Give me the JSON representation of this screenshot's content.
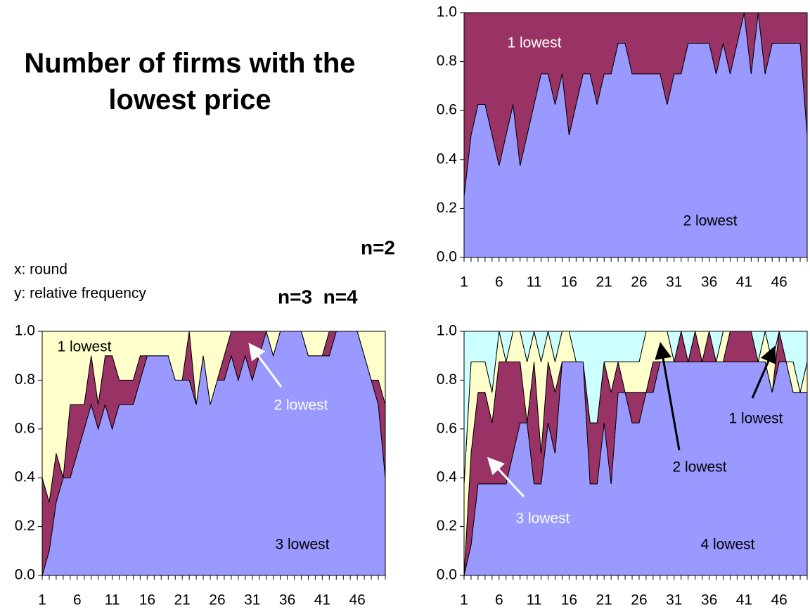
{
  "notes": {
    "heading": "Number of firms with the lowest price",
    "x_note": "x: round",
    "y_note": "y: relative frequency",
    "label_top": "n=2",
    "label_bottom": "n=3  n=4"
  },
  "chart_data": [
    {
      "type": "area",
      "x": [
        1,
        2,
        3,
        4,
        5,
        6,
        7,
        8,
        9,
        10,
        11,
        12,
        13,
        14,
        15,
        16,
        17,
        18,
        19,
        20,
        21,
        22,
        23,
        24,
        25,
        26,
        27,
        28,
        29,
        30,
        31,
        32,
        33,
        34,
        35,
        36,
        37,
        38,
        39,
        40,
        41,
        42,
        43,
        44,
        45,
        46,
        47,
        48,
        49,
        50
      ],
      "xlim": [
        1,
        50
      ],
      "xticks": [
        1,
        6,
        11,
        16,
        21,
        26,
        31,
        36,
        41,
        46
      ],
      "ylim": [
        0,
        1
      ],
      "yticks": [
        {
          "value": 0,
          "label": "0.0"
        },
        0.2,
        0.4,
        0.6,
        0.8,
        {
          "value": 1,
          "label": "1.0"
        }
      ],
      "series": [
        {
          "name": "2 lowest",
          "color": "#9999ff",
          "values": [
            0.25,
            0.5,
            0.625,
            0.625,
            0.5,
            0.375,
            0.5,
            0.625,
            0.375,
            0.5,
            0.625,
            0.75,
            0.75,
            0.625,
            0.75,
            0.5,
            0.625,
            0.75,
            0.75,
            0.625,
            0.75,
            0.75,
            0.875,
            0.875,
            0.75,
            0.75,
            0.75,
            0.75,
            0.75,
            0.625,
            0.75,
            0.75,
            0.875,
            0.875,
            0.875,
            0.875,
            0.75,
            0.875,
            0.75,
            0.875,
            1,
            0.75,
            1,
            0.75,
            0.875,
            0.875,
            0.875,
            0.875,
            0.875,
            0.5
          ]
        },
        {
          "name": "1 lowest",
          "color": "#993366",
          "values": [
            0.75,
            0.5,
            0.375,
            0.375,
            0.5,
            0.625,
            0.5,
            0.375,
            0.625,
            0.5,
            0.375,
            0.25,
            0.25,
            0.375,
            0.25,
            0.5,
            0.375,
            0.25,
            0.25,
            0.375,
            0.25,
            0.25,
            0.125,
            0.125,
            0.25,
            0.25,
            0.25,
            0.25,
            0.25,
            0.375,
            0.25,
            0.25,
            0.125,
            0.125,
            0.125,
            0.125,
            0.25,
            0.125,
            0.25,
            0.125,
            0,
            0.25,
            0,
            0.25,
            0.125,
            0.125,
            0.125,
            0.125,
            0.125,
            0.5
          ]
        }
      ]
    },
    {
      "type": "area",
      "x": [
        1,
        2,
        3,
        4,
        5,
        6,
        7,
        8,
        9,
        10,
        11,
        12,
        13,
        14,
        15,
        16,
        17,
        18,
        19,
        20,
        21,
        22,
        23,
        24,
        25,
        26,
        27,
        28,
        29,
        30,
        31,
        32,
        33,
        34,
        35,
        36,
        37,
        38,
        39,
        40,
        41,
        42,
        43,
        44,
        45,
        46,
        47,
        48,
        49,
        50
      ],
      "xlim": [
        1,
        50
      ],
      "xticks": [
        1,
        6,
        11,
        16,
        21,
        26,
        31,
        36,
        41,
        46
      ],
      "ylim": [
        0,
        1
      ],
      "yticks": [
        {
          "value": 0,
          "label": "0.0"
        },
        0.2,
        0.4,
        0.6,
        0.8,
        {
          "value": 1,
          "label": "1.0"
        }
      ],
      "series": [
        {
          "name": "3 lowest",
          "color": "#9999ff",
          "values": [
            0,
            0.1,
            0.3,
            0.4,
            0.4,
            0.5,
            0.6,
            0.7,
            0.6,
            0.7,
            0.6,
            0.7,
            0.7,
            0.7,
            0.8,
            0.9,
            0.9,
            0.9,
            0.9,
            0.8,
            0.8,
            0.8,
            0.7,
            0.9,
            0.7,
            0.8,
            0.8,
            0.9,
            0.8,
            0.9,
            0.8,
            0.9,
            1,
            0.9,
            1,
            1,
            1,
            1,
            0.9,
            0.9,
            0.9,
            0.9,
            1,
            1,
            1,
            1,
            0.9,
            0.8,
            0.7,
            0.4
          ]
        },
        {
          "name": "2 lowest",
          "color": "#993366",
          "values": [
            0.4,
            0.2,
            0.2,
            0,
            0.3,
            0.2,
            0.1,
            0.2,
            0.1,
            0.2,
            0.3,
            0.1,
            0.1,
            0.1,
            0.1,
            0,
            0,
            0,
            0,
            0,
            0,
            0.2,
            0,
            0,
            0,
            0,
            0.1,
            0.1,
            0.2,
            0.1,
            0.2,
            0.1,
            0,
            0,
            0,
            0,
            0,
            0,
            0,
            0,
            0,
            0.1,
            0,
            0,
            0,
            0,
            0,
            0,
            0.1,
            0.3
          ]
        },
        {
          "name": "1 lowest",
          "color": "#ffffcc",
          "values": [
            0.6,
            0.7,
            0.5,
            0.6,
            0.3,
            0.3,
            0.3,
            0.1,
            0.3,
            0.1,
            0.1,
            0.2,
            0.2,
            0.2,
            0.1,
            0.1,
            0.1,
            0.1,
            0.1,
            0.2,
            0.2,
            0,
            0.3,
            0.1,
            0.3,
            0.2,
            0.1,
            0,
            0,
            0,
            0,
            0,
            0,
            0.1,
            0,
            0,
            0,
            0,
            0.1,
            0.1,
            0.1,
            0,
            0,
            0,
            0,
            0,
            0.1,
            0.2,
            0.2,
            0.3
          ]
        }
      ]
    },
    {
      "type": "area",
      "x": [
        1,
        2,
        3,
        4,
        5,
        6,
        7,
        8,
        9,
        10,
        11,
        12,
        13,
        14,
        15,
        16,
        17,
        18,
        19,
        20,
        21,
        22,
        23,
        24,
        25,
        26,
        27,
        28,
        29,
        30,
        31,
        32,
        33,
        34,
        35,
        36,
        37,
        38,
        39,
        40,
        41,
        42,
        43,
        44,
        45,
        46,
        47,
        48,
        49,
        50
      ],
      "xlim": [
        1,
        50
      ],
      "xticks": [
        1,
        6,
        11,
        16,
        21,
        26,
        31,
        36,
        41,
        46
      ],
      "ylim": [
        0,
        1
      ],
      "yticks": [
        {
          "value": 0,
          "label": "0.0"
        },
        0.2,
        0.4,
        0.6,
        0.8,
        {
          "value": 1,
          "label": "1.0"
        }
      ],
      "series": [
        {
          "name": "4 lowest",
          "color": "#9999ff",
          "values": [
            0,
            0.125,
            0.375,
            0.375,
            0.375,
            0.375,
            0.375,
            0.5,
            0.625,
            0.625,
            0.375,
            0.375,
            0.625,
            0.5,
            0.875,
            0.875,
            0.875,
            0.875,
            0.375,
            0.375,
            0.625,
            0.375,
            0.75,
            0.75,
            0.625,
            0.625,
            0.75,
            0.75,
            0.875,
            0.875,
            0.875,
            0.875,
            0.875,
            0.875,
            0.875,
            0.875,
            0.875,
            0.875,
            0.875,
            0.875,
            0.875,
            0.875,
            0.875,
            0.875,
            0.75,
            0.875,
            0.875,
            0.75,
            0.75,
            0.75
          ]
        },
        {
          "name": "3 lowest",
          "color": "#993366",
          "values": [
            0,
            0.375,
            0.375,
            0.375,
            0.25,
            0.5,
            0.5,
            0.375,
            0.25,
            0,
            0.5,
            0.125,
            0.25,
            0.25,
            0,
            0,
            0,
            0,
            0.25,
            0.25,
            0.25,
            0.375,
            0.125,
            0,
            0.125,
            0.125,
            0,
            0.125,
            0,
            0,
            0,
            0.125,
            0,
            0.125,
            0,
            0.125,
            0,
            0,
            0.125,
            0.125,
            0.125,
            0.125,
            0,
            0,
            0,
            0.125,
            0,
            0,
            0,
            0
          ]
        },
        {
          "name": "2 lowest",
          "color": "#ffffcc",
          "values": [
            0.375,
            0.375,
            0.125,
            0.125,
            0.125,
            0.125,
            0,
            0.125,
            0.125,
            0.25,
            0.125,
            0.375,
            0.125,
            0.125,
            0.125,
            0.125,
            0,
            0,
            0,
            0,
            0,
            0.125,
            0,
            0.125,
            0.125,
            0.125,
            0.25,
            0.125,
            0.125,
            0.125,
            0,
            0,
            0,
            0,
            0.125,
            0,
            0,
            0.125,
            0,
            0,
            0,
            0,
            0,
            0.125,
            0.125,
            0,
            0,
            0.125,
            0,
            0.125
          ]
        },
        {
          "name": "1 lowest",
          "color": "#ccffff",
          "values": [
            0.625,
            0.125,
            0.125,
            0.125,
            0.25,
            0,
            0.125,
            0,
            0,
            0.125,
            0,
            0.125,
            0,
            0.125,
            0,
            0,
            0.125,
            0.125,
            0.375,
            0.375,
            0.125,
            0.125,
            0.125,
            0.125,
            0.125,
            0.125,
            0,
            0,
            0,
            0,
            0.125,
            0,
            0.125,
            0,
            0,
            0,
            0.125,
            0,
            0,
            0,
            0,
            0,
            0.125,
            0,
            0.125,
            0,
            0.125,
            0.125,
            0.25,
            0.125
          ]
        }
      ]
    }
  ]
}
